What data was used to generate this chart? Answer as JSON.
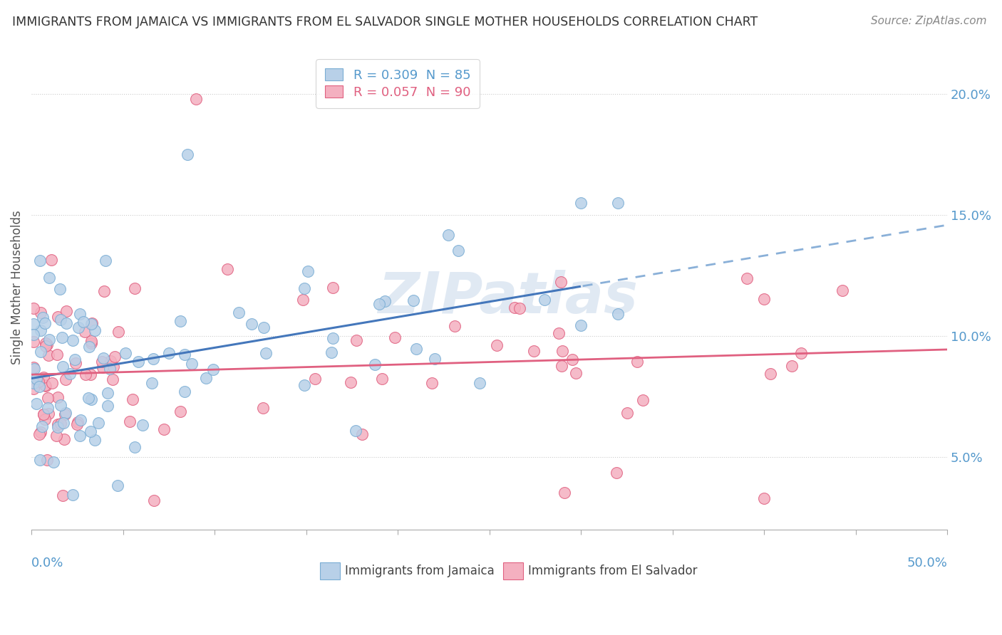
{
  "title": "IMMIGRANTS FROM JAMAICA VS IMMIGRANTS FROM EL SALVADOR SINGLE MOTHER HOUSEHOLDS CORRELATION CHART",
  "source": "Source: ZipAtlas.com",
  "ylabel": "Single Mother Households",
  "ytick_values": [
    0.05,
    0.1,
    0.15,
    0.2
  ],
  "xlim": [
    0.0,
    0.5
  ],
  "ylim": [
    0.02,
    0.22
  ],
  "jamaica_color": "#b8d0e8",
  "jamaica_edge": "#7aadd4",
  "salvador_color": "#f4b0c0",
  "salvador_edge": "#e06080",
  "jamaica_line_color": "#4477bb",
  "jamaica_line_dashed_color": "#8ab0d8",
  "salvador_line_color": "#e06080",
  "watermark_text": "ZIPatlas",
  "background_color": "#ffffff",
  "grid_color": "#cccccc",
  "title_color": "#333333",
  "source_color": "#888888",
  "axis_label_color": "#5599cc",
  "legend_border_color": "#cccccc"
}
